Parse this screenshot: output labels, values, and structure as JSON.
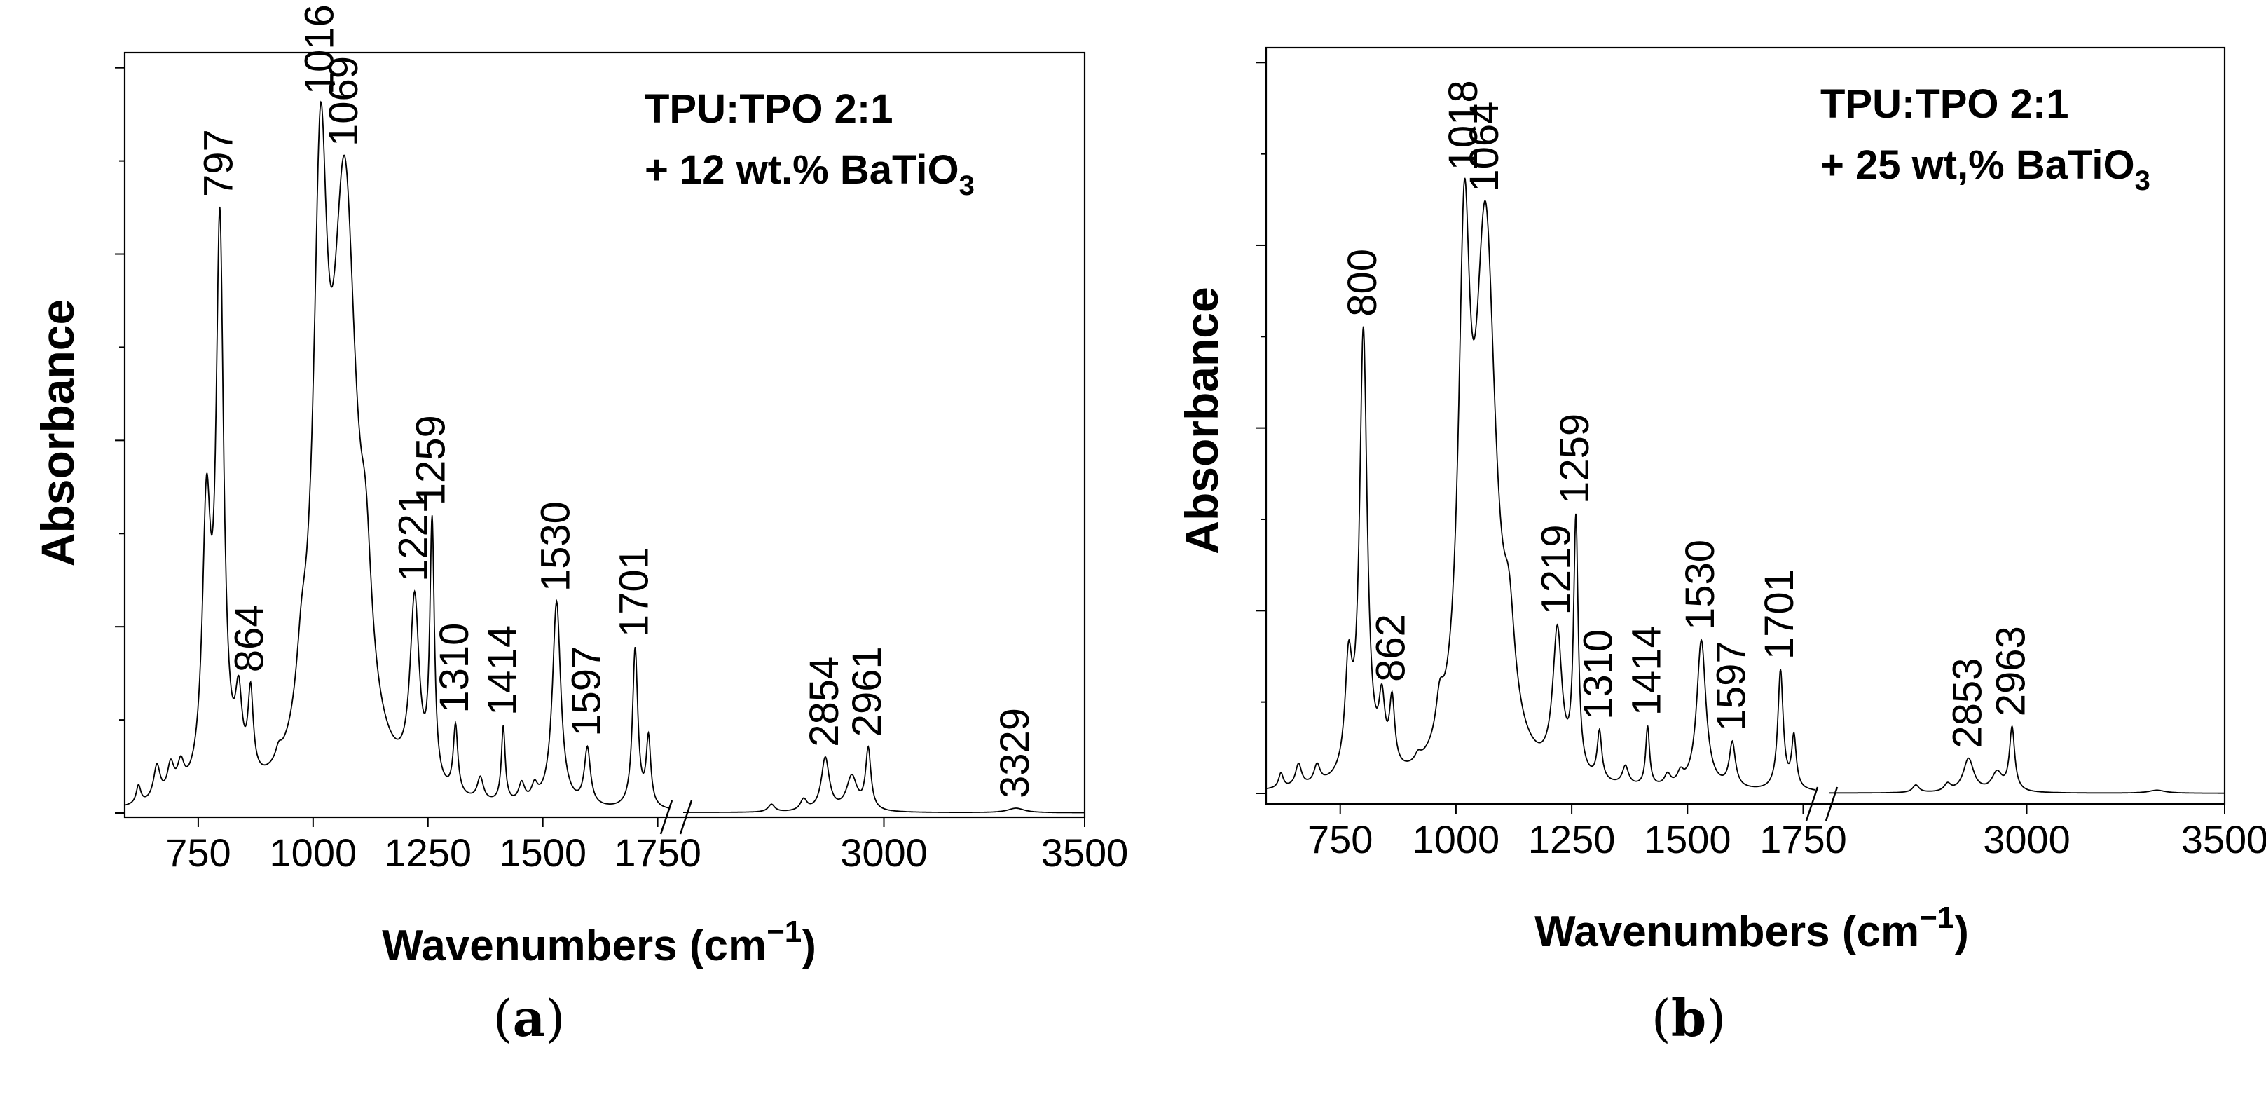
{
  "chart_data": [
    {
      "type": "line",
      "panel_label": "a",
      "title": "",
      "annotation": {
        "line1": "TPU:TPO 2:1",
        "line2_prefix": "+ 12 wt.% BaTiO",
        "line2_subscript": "3"
      },
      "xlabel_main": "Wavenumbers (cm",
      "xlabel_sup": "−1",
      "xlabel_close": ")",
      "ylabel": "Absorbance",
      "x_axis": {
        "type": "broken",
        "segments": [
          {
            "range": [
              590,
              1775
            ],
            "ticks": [
              750,
              1000,
              1250,
              1500,
              1750
            ],
            "tick_labels": [
              "750",
              "1000",
              "1250",
              "1500",
              "1750"
            ]
          },
          {
            "range": [
              2500,
              3500
            ],
            "ticks": [
              3000,
              3500
            ],
            "tick_labels": [
              "3000",
              "3500"
            ]
          }
        ]
      },
      "ylim": [
        0,
        1
      ],
      "y_labels_shown": false,
      "series": [
        {
          "peaks": [
            {
              "x": 620,
              "y": 0.024,
              "w": 6
            },
            {
              "x": 660,
              "y": 0.045,
              "w": 9
            },
            {
              "x": 690,
              "y": 0.04,
              "w": 9
            },
            {
              "x": 712,
              "y": 0.035,
              "w": 9
            },
            {
              "x": 768,
              "y": 0.35,
              "w": 11
            },
            {
              "x": 797,
              "y": 0.73,
              "w": 10
            },
            {
              "x": 838,
              "y": 0.1,
              "w": 9
            },
            {
              "x": 864,
              "y": 0.11,
              "w": 7
            },
            {
              "x": 925,
              "y": 0.015,
              "w": 8
            },
            {
              "x": 975,
              "y": 0.08,
              "w": 14
            },
            {
              "x": 1016,
              "y": 0.71,
              "w": 18
            },
            {
              "x": 1069,
              "y": 0.77,
              "w": 32
            },
            {
              "x": 1115,
              "y": 0.15,
              "w": 15
            },
            {
              "x": 1221,
              "y": 0.24,
              "w": 12
            },
            {
              "x": 1259,
              "y": 0.34,
              "w": 6
            },
            {
              "x": 1310,
              "y": 0.09,
              "w": 6
            },
            {
              "x": 1364,
              "y": 0.03,
              "w": 8
            },
            {
              "x": 1414,
              "y": 0.1,
              "w": 5
            },
            {
              "x": 1454,
              "y": 0.025,
              "w": 8
            },
            {
              "x": 1482,
              "y": 0.02,
              "w": 8
            },
            {
              "x": 1530,
              "y": 0.27,
              "w": 11
            },
            {
              "x": 1597,
              "y": 0.075,
              "w": 8
            },
            {
              "x": 1701,
              "y": 0.21,
              "w": 7
            },
            {
              "x": 1730,
              "y": 0.09,
              "w": 6
            },
            {
              "x": 2720,
              "y": 0.01,
              "w": 10
            },
            {
              "x": 2800,
              "y": 0.015,
              "w": 10
            },
            {
              "x": 2854,
              "y": 0.07,
              "w": 12
            },
            {
              "x": 2920,
              "y": 0.045,
              "w": 16
            },
            {
              "x": 2961,
              "y": 0.08,
              "w": 8
            },
            {
              "x": 3329,
              "y": 0.006,
              "w": 25
            }
          ]
        }
      ],
      "peak_labels": [
        {
          "text": "797",
          "x": 797,
          "y": 0.73
        },
        {
          "text": "864",
          "x": 864,
          "y": 0.11
        },
        {
          "text": "1016",
          "x": 1016,
          "y": 0.71
        },
        {
          "text": "1069",
          "x": 1069,
          "y": 0.77
        },
        {
          "text": "1221",
          "x": 1221,
          "y": 0.24
        },
        {
          "text": "1259",
          "x": 1259,
          "y": 0.34
        },
        {
          "text": "1310",
          "x": 1310,
          "y": 0.09
        },
        {
          "text": "1414",
          "x": 1414,
          "y": 0.1
        },
        {
          "text": "1530",
          "x": 1530,
          "y": 0.27
        },
        {
          "text": "1597",
          "x": 1597,
          "y": 0.075
        },
        {
          "text": "1701",
          "x": 1701,
          "y": 0.21
        },
        {
          "text": "2854",
          "x": 2854,
          "y": 0.07
        },
        {
          "text": "2961",
          "x": 2961,
          "y": 0.08
        },
        {
          "text": "3329",
          "x": 3329,
          "y": 0.006
        }
      ]
    },
    {
      "type": "line",
      "panel_label": "b",
      "title": "",
      "annotation": {
        "line1": "TPU:TPO 2:1",
        "line2_prefix": "+ 25 wt,% BaTiO",
        "line2_subscript": "3"
      },
      "xlabel_main": "Wavenumbers (cm",
      "xlabel_sup": "−1",
      "xlabel_close": ")",
      "ylabel": "Absorbance",
      "x_axis": {
        "type": "broken",
        "segments": [
          {
            "range": [
              590,
              1775
            ],
            "ticks": [
              750,
              1000,
              1250,
              1500,
              1750
            ],
            "tick_labels": [
              "750",
              "1000",
              "1250",
              "1500",
              "1750"
            ]
          },
          {
            "range": [
              2500,
              3500
            ],
            "ticks": [
              3000,
              3500
            ],
            "tick_labels": [
              "3000",
              "3500"
            ]
          }
        ]
      },
      "ylim": [
        0,
        1
      ],
      "y_labels_shown": false,
      "series": [
        {
          "peaks": [
            {
              "x": 622,
              "y": 0.02,
              "w": 6
            },
            {
              "x": 660,
              "y": 0.03,
              "w": 8
            },
            {
              "x": 700,
              "y": 0.025,
              "w": 8
            },
            {
              "x": 768,
              "y": 0.14,
              "w": 9
            },
            {
              "x": 800,
              "y": 0.6,
              "w": 10
            },
            {
              "x": 840,
              "y": 0.085,
              "w": 8
            },
            {
              "x": 862,
              "y": 0.09,
              "w": 7
            },
            {
              "x": 918,
              "y": 0.01,
              "w": 8
            },
            {
              "x": 965,
              "y": 0.05,
              "w": 10
            },
            {
              "x": 1018,
              "y": 0.63,
              "w": 15
            },
            {
              "x": 1064,
              "y": 0.72,
              "w": 27
            },
            {
              "x": 1115,
              "y": 0.12,
              "w": 15
            },
            {
              "x": 1219,
              "y": 0.19,
              "w": 12
            },
            {
              "x": 1259,
              "y": 0.34,
              "w": 6
            },
            {
              "x": 1310,
              "y": 0.065,
              "w": 6
            },
            {
              "x": 1366,
              "y": 0.025,
              "w": 8
            },
            {
              "x": 1414,
              "y": 0.08,
              "w": 5
            },
            {
              "x": 1457,
              "y": 0.015,
              "w": 8
            },
            {
              "x": 1485,
              "y": 0.015,
              "w": 8
            },
            {
              "x": 1530,
              "y": 0.2,
              "w": 12
            },
            {
              "x": 1597,
              "y": 0.06,
              "w": 8
            },
            {
              "x": 1701,
              "y": 0.16,
              "w": 7
            },
            {
              "x": 1730,
              "y": 0.07,
              "w": 6
            },
            {
              "x": 2720,
              "y": 0.01,
              "w": 10
            },
            {
              "x": 2800,
              "y": 0.01,
              "w": 10
            },
            {
              "x": 2853,
              "y": 0.045,
              "w": 16
            },
            {
              "x": 2925,
              "y": 0.025,
              "w": 16
            },
            {
              "x": 2963,
              "y": 0.085,
              "w": 8
            },
            {
              "x": 3329,
              "y": 0.004,
              "w": 25
            }
          ]
        }
      ],
      "peak_labels": [
        {
          "text": "800",
          "x": 800,
          "y": 0.6
        },
        {
          "text": "862",
          "x": 862,
          "y": 0.09
        },
        {
          "text": "1018",
          "x": 1018,
          "y": 0.63
        },
        {
          "text": "1064",
          "x": 1064,
          "y": 0.72
        },
        {
          "text": "1219",
          "x": 1219,
          "y": 0.19
        },
        {
          "text": "1259",
          "x": 1259,
          "y": 0.34
        },
        {
          "text": "1310",
          "x": 1310,
          "y": 0.065
        },
        {
          "text": "1414",
          "x": 1414,
          "y": 0.08
        },
        {
          "text": "1530",
          "x": 1530,
          "y": 0.2
        },
        {
          "text": "1597",
          "x": 1597,
          "y": 0.06
        },
        {
          "text": "1701",
          "x": 1701,
          "y": 0.16
        },
        {
          "text": "2853",
          "x": 2853,
          "y": 0.045
        },
        {
          "text": "2963",
          "x": 2963,
          "y": 0.085
        }
      ]
    }
  ],
  "captions": [
    {
      "open": "(",
      "letter": "a",
      "close": ")"
    },
    {
      "open": "(",
      "letter": "b",
      "close": ")"
    }
  ]
}
